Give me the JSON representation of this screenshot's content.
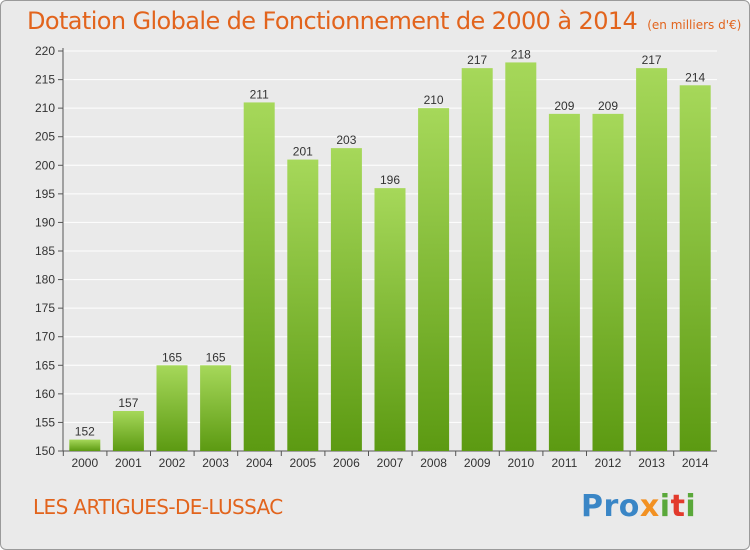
{
  "header": {
    "title": "Dotation Globale de Fonctionnement de 2000 à 2014",
    "unit_note": "(en milliers d'€)"
  },
  "footer": {
    "commune": "LES ARTIGUES-DE-LUSSAC",
    "brand": {
      "p1": "Pro",
      "p2": "x",
      "p3": "i",
      "p4": "t",
      "p5": "i"
    }
  },
  "colors": {
    "title": "#e2641d",
    "bar_top": "#a6d85a",
    "bar_bottom": "#5c9a12",
    "background": "#eaeaea",
    "grid": "#ffffff"
  },
  "chart_data": {
    "type": "bar",
    "title": "Dotation Globale de Fonctionnement de 2000 à 2014",
    "subtitle": "(en milliers d'€)",
    "categories": [
      "2000",
      "2001",
      "2002",
      "2003",
      "2004",
      "2005",
      "2006",
      "2007",
      "2008",
      "2009",
      "2010",
      "2011",
      "2012",
      "2013",
      "2014"
    ],
    "values": [
      152,
      157,
      165,
      165,
      211,
      201,
      203,
      196,
      210,
      217,
      218,
      209,
      209,
      217,
      214
    ],
    "ylim": [
      150,
      220
    ],
    "yticks": [
      150,
      155,
      160,
      165,
      170,
      175,
      180,
      185,
      190,
      195,
      200,
      205,
      210,
      215,
      220
    ],
    "grid": true,
    "xlabel": "",
    "ylabel": ""
  }
}
